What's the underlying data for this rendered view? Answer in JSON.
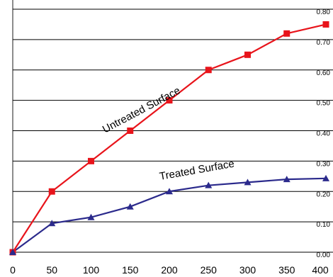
{
  "chart_data": {
    "type": "line",
    "title": "",
    "xlabel": "",
    "ylabel": "",
    "xlim": [
      0,
      400
    ],
    "ylim": [
      0,
      0.8
    ],
    "grid": true,
    "x_ticks": [
      "0",
      "50",
      "100",
      "150",
      "200",
      "250",
      "300",
      "350",
      "400"
    ],
    "y_ticks": [
      "0.00",
      "0.10",
      "0.20",
      "0.30",
      "0.40",
      "0.50",
      "0.60",
      "0.70",
      "0.80"
    ],
    "series": [
      {
        "name": "Untreated Surface",
        "color": "#e8141b",
        "marker": "square",
        "x": [
          0,
          50,
          100,
          150,
          200,
          250,
          300,
          350,
          400
        ],
        "y": [
          0.0,
          0.2,
          0.3,
          0.4,
          0.5,
          0.6,
          0.65,
          0.72,
          0.75
        ]
      },
      {
        "name": "Treated Surface",
        "color": "#2b2a8c",
        "marker": "triangle",
        "x": [
          0,
          50,
          100,
          150,
          200,
          250,
          300,
          350,
          400
        ],
        "y": [
          0.0,
          0.095,
          0.115,
          0.15,
          0.2,
          0.22,
          0.23,
          0.24,
          0.243
        ]
      }
    ],
    "annotations": [
      {
        "text": "Untreated Surface",
        "series": 0
      },
      {
        "text": "Treated Surface",
        "series": 1
      }
    ]
  }
}
